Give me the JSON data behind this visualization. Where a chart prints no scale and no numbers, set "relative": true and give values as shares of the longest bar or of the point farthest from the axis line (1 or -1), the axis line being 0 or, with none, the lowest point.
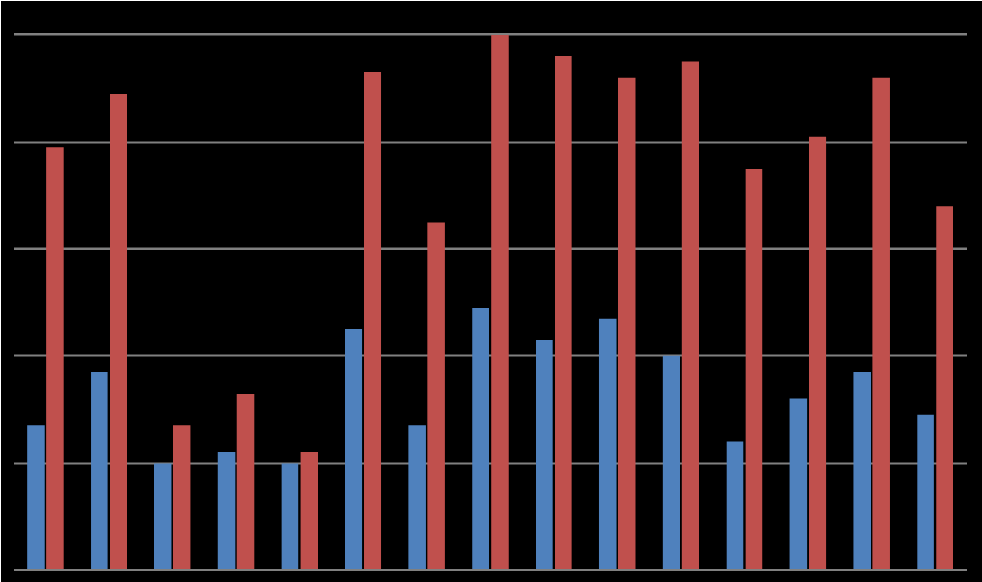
{
  "chart_data": {
    "type": "bar",
    "relative": true,
    "grid": "y",
    "categories": [
      null,
      null,
      null,
      null,
      null,
      null,
      null,
      null,
      null,
      null,
      null,
      null,
      null,
      null,
      null
    ],
    "series": [
      {
        "color": "#4f81bd",
        "values": [
          0.27,
          0.37,
          0.2,
          0.22,
          0.2,
          0.45,
          0.27,
          0.49,
          0.43,
          0.47,
          0.4,
          0.24,
          0.32,
          0.37,
          0.29
        ]
      },
      {
        "color": "#c0504d",
        "values": [
          0.79,
          0.89,
          0.27,
          0.33,
          0.22,
          0.93,
          0.65,
          1,
          0.96,
          0.92,
          0.95,
          0.75,
          0.81,
          0.92,
          0.68
        ]
      }
    ]
  }
}
